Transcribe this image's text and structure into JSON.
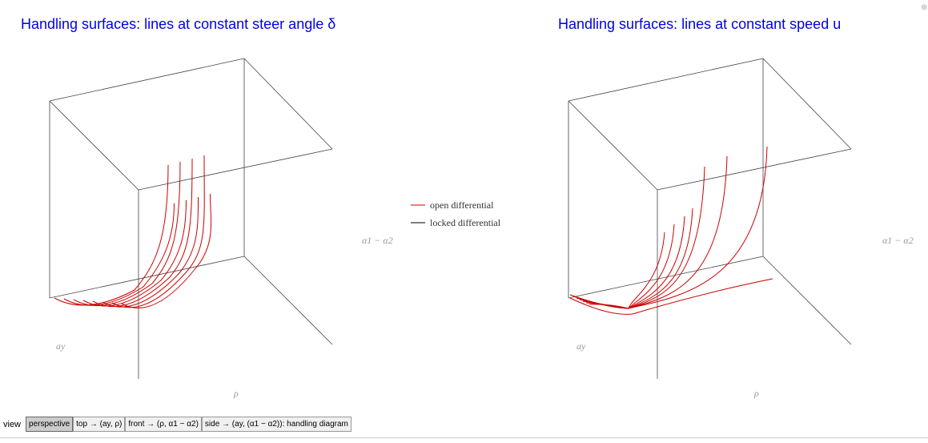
{
  "panels": [
    {
      "title": "Handling surfaces: lines at constant steer angle δ",
      "axis_labels": {
        "ay": "ay",
        "rho": "ρ",
        "alpha": "α1 − α2"
      }
    },
    {
      "title": "Handling surfaces: lines at constant speed u",
      "axis_labels": {
        "ay": "ay",
        "rho": "ρ",
        "alpha": "α1 − α2"
      }
    }
  ],
  "legend": [
    {
      "name": "open differential",
      "color": "#cc0000"
    },
    {
      "name": "locked differential",
      "color": "#000000"
    }
  ],
  "controls": {
    "label": "view",
    "buttons": [
      "perspective",
      "top → (ay, ρ)",
      "front → (ρ, α1 − α2)",
      "side → (ay, (α1 − α2)): handling diagram"
    ],
    "selected": 0
  }
}
